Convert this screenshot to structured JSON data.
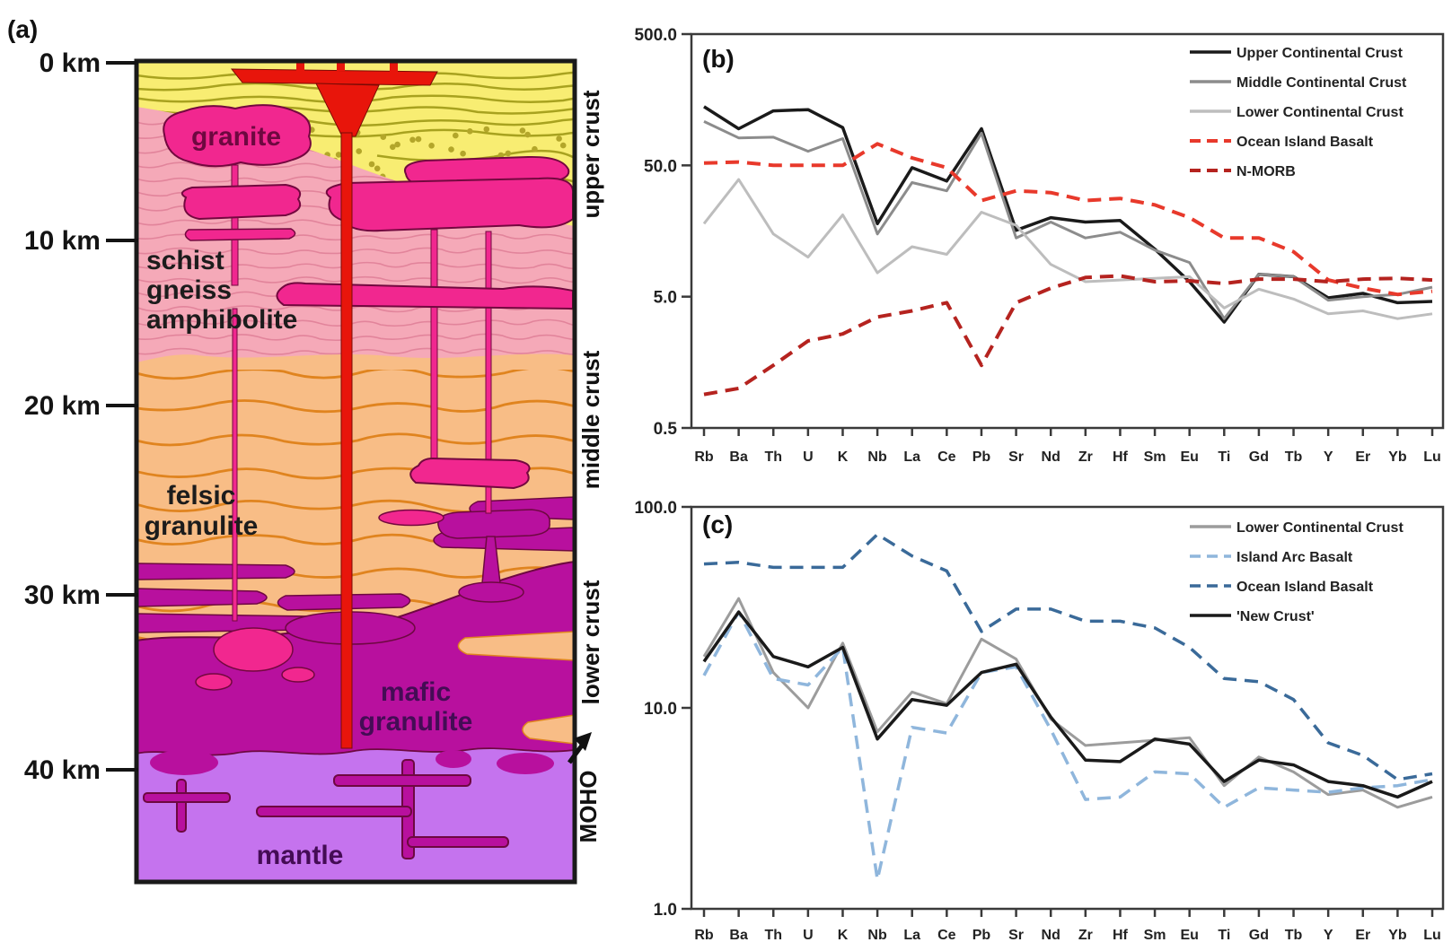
{
  "figure": {
    "panel_a": {
      "label": "(a)",
      "depth_labels": [
        "0 km",
        "10 km",
        "20 km",
        "30 km",
        "40 km"
      ],
      "unit_labels": {
        "granite": "granite",
        "schist": [
          "schist",
          "gneiss",
          "amphibolite"
        ],
        "felsic": [
          "felsic",
          "granulite"
        ],
        "mafic": [
          "mafic",
          "granulite"
        ],
        "mantle": "mantle"
      },
      "side_labels": [
        "upper crust",
        "middle crust",
        "lower crust"
      ],
      "moho_label": "MOHO",
      "colors": {
        "sediment": "#f8ed72",
        "sediment_lines": "#a8a21f",
        "sediment_dots": "#b3a62a",
        "schist": "#f5a9b8",
        "schist_lines": "#e2849b",
        "felsic": "#f8bd86",
        "felsic_lines": "#e0841f",
        "mafic": "#b8109e",
        "mafic_outline": "#6e0840",
        "mantle": "#c573ee",
        "granite": "#f1278f",
        "granite_outline": "#73083f",
        "dike_red": "#e8150b",
        "dike_red_outline": "#7a0b05",
        "border": "#1a1a1a"
      }
    }
  },
  "chart_data": [
    {
      "type": "line",
      "panel_label": "(b)",
      "yscale": "log",
      "ylim": [
        0.5,
        500
      ],
      "grid": false,
      "legend_position": "top-right",
      "yticks": [
        {
          "value": 500,
          "label": "500.0"
        },
        {
          "value": 50,
          "label": "50.0"
        },
        {
          "value": 5,
          "label": "5.0"
        },
        {
          "value": 0.5,
          "label": "0.5"
        }
      ],
      "x": [
        "Rb",
        "Ba",
        "Th",
        "U",
        "K",
        "Nb",
        "La",
        "Ce",
        "Pb",
        "Sr",
        "Nd",
        "Zr",
        "Hf",
        "Sm",
        "Eu",
        "Ti",
        "Gd",
        "Tb",
        "Y",
        "Er",
        "Yb",
        "Lu"
      ],
      "series": [
        {
          "name": "Upper Continental Crust",
          "color": "#1a1a1a",
          "dash": "solid",
          "width": 3.5,
          "values": [
            140,
            95,
            130,
            133,
            97,
            18,
            48,
            38,
            95,
            16,
            20,
            18.5,
            19,
            11.5,
            6.5,
            3.2,
            7.4,
            7.1,
            4.9,
            5.3,
            4.5,
            4.6
          ]
        },
        {
          "name": "Middle Continental Crust",
          "color": "#8c8c8c",
          "dash": "solid",
          "width": 3,
          "values": [
            108,
            81,
            82,
            64,
            80,
            15,
            37,
            32,
            88,
            14,
            18.5,
            14,
            15.5,
            11.3,
            9.1,
            3.4,
            7.4,
            7.1,
            4.7,
            5.0,
            5.2,
            5.9
          ]
        },
        {
          "name": "Lower Continental Crust",
          "color": "#bdbdbd",
          "dash": "solid",
          "width": 3,
          "values": [
            18,
            39,
            15,
            10,
            21,
            7.6,
            12,
            10.5,
            22,
            17.5,
            8.8,
            6.5,
            6.7,
            6.9,
            7.1,
            4.1,
            5.7,
            4.8,
            3.7,
            3.9,
            3.4,
            3.7
          ]
        },
        {
          "name": "Ocean Island Basalt",
          "color": "#e8392b",
          "dash": "long-dash",
          "width": 4,
          "values": [
            52,
            53,
            50,
            50,
            50,
            73,
            57,
            48,
            27,
            32,
            31,
            27,
            28,
            25,
            20,
            14,
            14,
            11,
            6.7,
            5.8,
            5.2,
            5.5
          ]
        },
        {
          "name": "N-MORB",
          "color": "#b5231f",
          "dash": "long-dash",
          "width": 4,
          "values": [
            0.9,
            1.0,
            1.5,
            2.3,
            2.6,
            3.5,
            3.9,
            4.5,
            1.5,
            4.5,
            5.8,
            7.0,
            7.2,
            6.5,
            6.6,
            6.3,
            6.8,
            6.8,
            6.5,
            6.8,
            6.9,
            6.7
          ]
        }
      ]
    },
    {
      "type": "line",
      "panel_label": "(c)",
      "yscale": "log",
      "ylim": [
        1,
        100
      ],
      "grid": false,
      "legend_position": "top-right",
      "yticks": [
        {
          "value": 100,
          "label": "100.0"
        },
        {
          "value": 10,
          "label": "10.0"
        },
        {
          "value": 1,
          "label": "1.0"
        }
      ],
      "x": [
        "Rb",
        "Ba",
        "Th",
        "U",
        "K",
        "Nb",
        "La",
        "Ce",
        "Pb",
        "Sr",
        "Nd",
        "Zr",
        "Hf",
        "Sm",
        "Eu",
        "Ti",
        "Gd",
        "Tb",
        "Y",
        "Er",
        "Yb",
        "Lu"
      ],
      "series": [
        {
          "name": "Lower Continental Crust",
          "color": "#9c9c9c",
          "dash": "solid",
          "width": 3,
          "values": [
            18,
            35,
            15,
            10,
            21,
            7.6,
            12,
            10.5,
            22,
            17.5,
            8.8,
            6.5,
            6.7,
            6.9,
            7.1,
            4.1,
            5.7,
            4.8,
            3.7,
            3.9,
            3.2,
            3.6
          ]
        },
        {
          "name": "Island Arc Basalt",
          "color": "#8fb6dc",
          "dash": "long-dash",
          "width": 3.5,
          "values": [
            14.5,
            30,
            14,
            13,
            20,
            1.4,
            8,
            7.5,
            15,
            16,
            7.8,
            3.5,
            3.6,
            4.8,
            4.7,
            3.2,
            4.0,
            3.9,
            3.8,
            4.0,
            4.1,
            4.4
          ]
        },
        {
          "name": "Ocean Island Basalt",
          "color": "#3a6a99",
          "dash": "long-dash",
          "width": 3.5,
          "values": [
            52,
            53,
            50,
            50,
            50,
            73,
            57,
            48,
            24,
            31,
            31,
            27,
            27,
            25,
            20,
            14,
            13.5,
            11,
            6.7,
            5.8,
            4.4,
            4.7
          ]
        },
        {
          "name": "'New Crust'",
          "color": "#1a1a1a",
          "dash": "solid",
          "width": 3.5,
          "values": [
            17,
            30,
            18,
            16,
            20,
            7,
            11,
            10.3,
            15,
            16.5,
            9,
            5.5,
            5.4,
            7,
            6.6,
            4.3,
            5.5,
            5.2,
            4.3,
            4.1,
            3.6,
            4.3
          ]
        }
      ]
    }
  ]
}
